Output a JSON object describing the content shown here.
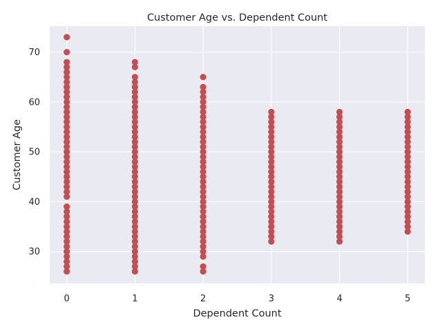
{
  "chart_data": {
    "type": "scatter",
    "title": "Customer Age vs. Dependent Count",
    "xlabel": "Dependent Count",
    "ylabel": "Customer Age",
    "xlim": [
      -0.25,
      5.25
    ],
    "ylim": [
      23.6,
      75.2
    ],
    "xticks": [
      0,
      1,
      2,
      3,
      4,
      5
    ],
    "yticks": [
      30,
      40,
      50,
      60,
      70
    ],
    "grid": true,
    "point_color": "#c44e52",
    "background_color": "#eaeaf2",
    "series": [
      {
        "points": [
          {
            "x": 0,
            "y_values": [
              26,
              27,
              28,
              29,
              30,
              31,
              32,
              33,
              34,
              35,
              36,
              37,
              38,
              39,
              41,
              42,
              43,
              44,
              45,
              46,
              47,
              48,
              49,
              50,
              51,
              52,
              53,
              54,
              55,
              56,
              57,
              58,
              59,
              60,
              61,
              62,
              63,
              64,
              65,
              66,
              67,
              68,
              70,
              73
            ]
          },
          {
            "x": 1,
            "y_values": [
              26,
              27,
              28,
              29,
              30,
              31,
              32,
              33,
              34,
              35,
              36,
              37,
              38,
              39,
              40,
              41,
              42,
              43,
              44,
              45,
              46,
              47,
              48,
              49,
              50,
              51,
              52,
              53,
              54,
              55,
              56,
              57,
              58,
              59,
              60,
              61,
              62,
              63,
              64,
              65,
              67,
              68
            ]
          },
          {
            "x": 2,
            "y_values": [
              26,
              27,
              29,
              30,
              31,
              32,
              33,
              34,
              35,
              36,
              37,
              38,
              39,
              40,
              41,
              42,
              43,
              44,
              45,
              46,
              47,
              48,
              49,
              50,
              51,
              52,
              53,
              54,
              55,
              56,
              57,
              58,
              59,
              60,
              61,
              62,
              63,
              65
            ]
          },
          {
            "x": 3,
            "y_values": [
              32,
              33,
              34,
              35,
              36,
              37,
              38,
              39,
              40,
              41,
              42,
              43,
              44,
              45,
              46,
              47,
              48,
              49,
              50,
              51,
              52,
              53,
              54,
              55,
              56,
              57,
              58
            ]
          },
          {
            "x": 4,
            "y_values": [
              32,
              33,
              34,
              35,
              36,
              37,
              38,
              39,
              40,
              41,
              42,
              43,
              44,
              45,
              46,
              47,
              48,
              49,
              50,
              51,
              52,
              53,
              54,
              55,
              56,
              57,
              58
            ]
          },
          {
            "x": 5,
            "y_values": [
              34,
              35,
              36,
              37,
              38,
              39,
              40,
              41,
              42,
              43,
              44,
              45,
              46,
              47,
              48,
              49,
              50,
              51,
              52,
              53,
              54,
              55,
              56,
              57,
              58
            ]
          }
        ]
      }
    ]
  }
}
